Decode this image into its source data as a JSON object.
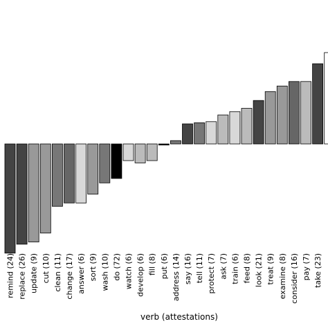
{
  "chart_data": {
    "type": "bar",
    "title": "",
    "xlabel": "verb (attestations)",
    "ylabel": "",
    "ylim": [
      -1.0,
      0.88
    ],
    "categories": [
      "remind (24)",
      "replace (26)",
      "update (9)",
      "cut (10)",
      "clean (11)",
      "change (17)",
      "answer (6)",
      "sort (9)",
      "wash (10)",
      "do (72)",
      "watch (6)",
      "develop (6)",
      "fill (8)",
      "put (6)",
      "address (14)",
      "say (16)",
      "tell (11)",
      "protect (7)",
      "ask (7)",
      "train (6)",
      "feed (8)",
      "look (21)",
      "treat (9)",
      "examine (8)",
      "consider (16)",
      "pay (7)",
      "take (23)"
    ],
    "values": [
      -0.98,
      -0.9,
      -0.88,
      -0.8,
      -0.56,
      -0.53,
      -0.53,
      -0.45,
      -0.35,
      -0.31,
      -0.15,
      -0.17,
      -0.15,
      -0.01,
      0.03,
      0.18,
      0.19,
      0.2,
      0.26,
      0.29,
      0.32,
      0.39,
      0.47,
      0.52,
      0.56,
      0.56,
      0.72
    ],
    "colors": [
      "#444444",
      "#444444",
      "#999999",
      "#999999",
      "#777777",
      "#666666",
      "#d8d8d8",
      "#999999",
      "#777777",
      "#000000",
      "#d8d8d8",
      "#bbbbbb",
      "#bbbbbb",
      "#222222",
      "#777777",
      "#444444",
      "#777777",
      "#d8d8d8",
      "#bbbbbb",
      "#d8d8d8",
      "#bbbbbb",
      "#444444",
      "#999999",
      "#999999",
      "#666666",
      "#bbbbbb",
      "#444444"
    ],
    "extra_bar": {
      "value": 0.82,
      "color": "#ffffff"
    },
    "grid": false,
    "legend": "none"
  }
}
